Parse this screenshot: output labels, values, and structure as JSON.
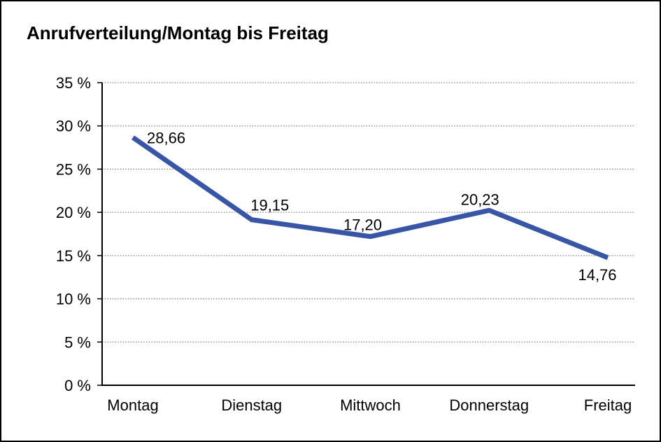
{
  "chart_data": {
    "type": "line",
    "title": "Anrufverteilung/Montag bis Freitag",
    "categories": [
      "Montag",
      "Dienstag",
      "Mittwoch",
      "Donnerstag",
      "Freitag"
    ],
    "values": [
      28.66,
      19.15,
      17.2,
      20.23,
      14.76
    ],
    "point_labels": [
      "28,66",
      "19,15",
      "17,20",
      "20,23",
      "14,76"
    ],
    "y_tick_labels": [
      "0 %",
      "5 %",
      "10 %",
      "15 %",
      "20 %",
      "25 %",
      "30 %",
      "35 %"
    ],
    "ylim": [
      0,
      35
    ],
    "y_step": 5,
    "xlabel": "",
    "ylabel": "",
    "grid": "horizontal-dotted",
    "legend": "none",
    "colors": {
      "line": "#3956A6",
      "grid": "#808080",
      "axis": "#000000",
      "text": "#000000",
      "background": "#ffffff"
    }
  }
}
